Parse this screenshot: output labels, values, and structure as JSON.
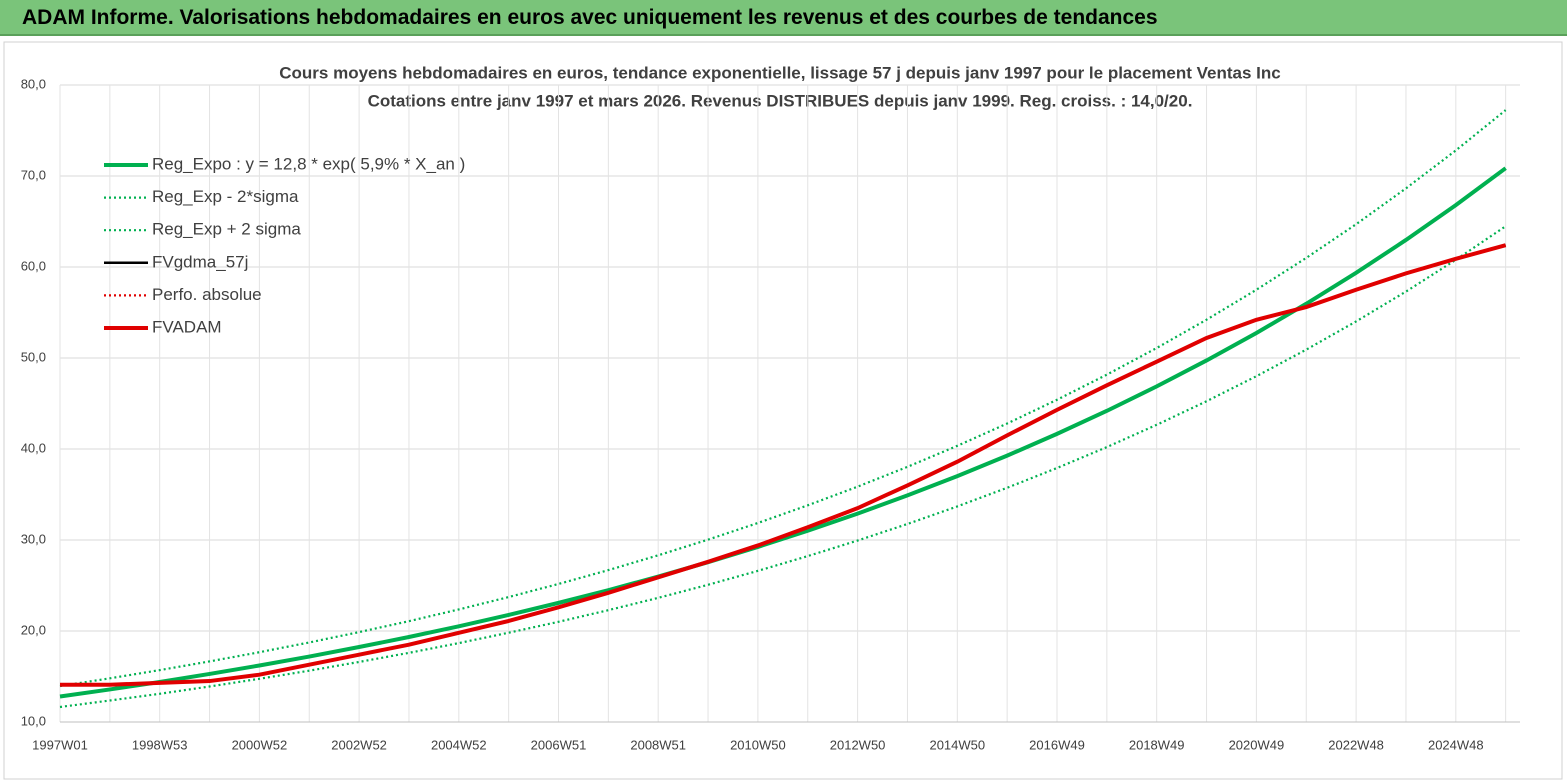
{
  "header": {
    "title": "ADAM Informe. Valorisations hebdomadaires en euros avec uniquement les revenus et des courbes de tendances"
  },
  "chart_data": {
    "type": "line",
    "title": "Cours moyens  hebdomadaires en euros, tendance exponentielle, lissage 57 j depuis janv 1997  pour le placement Ventas Inc",
    "subtitle": "Cotations entre janv 1997 et mars 2026. Revenus DISTRIBUES depuis janv 1999. Reg. croiss. : 14,0/20.",
    "categories": [
      "1997W01",
      null,
      "1998W53",
      null,
      "2000W52",
      null,
      "2002W52",
      null,
      "2004W52",
      null,
      "2006W51",
      null,
      "2008W51",
      null,
      "2010W50",
      null,
      "2012W50",
      null,
      "2014W50",
      null,
      "2016W49",
      null,
      "2018W49",
      null,
      "2020W49",
      null,
      "2022W48",
      null,
      "2024W48",
      null
    ],
    "ylim": [
      10,
      80
    ],
    "yticks": [
      {
        "value": 10,
        "label": "10,0"
      },
      {
        "value": 20,
        "label": "20,0"
      },
      {
        "value": 30,
        "label": "30,0"
      },
      {
        "value": 40,
        "label": "40,0"
      },
      {
        "value": 50,
        "label": "50,0"
      },
      {
        "value": 60,
        "label": "60,0"
      },
      {
        "value": 70,
        "label": "70,0"
      },
      {
        "value": 80,
        "label": "80,0"
      }
    ],
    "grid": true,
    "legend": "top-left",
    "series": [
      {
        "name": "Reg_Expo : y = 12,8 * exp( 5,9% *  X_an )",
        "color": "#00b050",
        "style": "thick",
        "values": [
          12.8,
          13.58,
          14.4,
          15.28,
          16.21,
          17.19,
          18.24,
          19.34,
          20.52,
          21.77,
          23.09,
          24.49,
          25.98,
          27.56,
          29.24,
          31.02,
          32.9,
          34.9,
          37.02,
          39.27,
          41.66,
          44.19,
          46.88,
          49.73,
          52.75,
          55.96,
          59.36,
          62.97,
          66.8,
          70.86
        ]
      },
      {
        "name": "Reg_Exp - 2*sigma",
        "color": "#00b050",
        "style": "dotted",
        "values": [
          11.65,
          12.36,
          13.1,
          13.9,
          14.75,
          15.64,
          16.6,
          17.6,
          18.67,
          19.81,
          21.01,
          22.29,
          23.64,
          25.08,
          26.61,
          28.23,
          29.94,
          31.76,
          33.69,
          35.74,
          37.91,
          40.21,
          42.66,
          45.25,
          48.0,
          50.92,
          54.02,
          57.3,
          60.79,
          64.48
        ]
      },
      {
        "name": "Reg_Exp + 2 sigma",
        "color": "#00b050",
        "style": "dotted",
        "values": [
          13.95,
          14.8,
          15.7,
          16.66,
          17.67,
          18.74,
          19.88,
          21.08,
          22.37,
          23.73,
          25.17,
          26.69,
          28.32,
          30.04,
          31.87,
          33.81,
          35.86,
          38.04,
          40.35,
          42.8,
          45.41,
          48.17,
          51.1,
          54.21,
          57.5,
          61.0,
          64.7,
          68.64,
          72.81,
          77.24
        ]
      },
      {
        "name": "FVgdma_57j",
        "color": "#000000",
        "style": "thin",
        "values": [
          14.1,
          14.1,
          14.3,
          14.5,
          15.2,
          16.3,
          17.4,
          18.5,
          19.8,
          21.1,
          22.6,
          24.2,
          25.9,
          27.6,
          29.4,
          31.4,
          33.5,
          36.0,
          38.6,
          41.5,
          44.3,
          47.0,
          49.6,
          52.2,
          54.2,
          55.6,
          57.5,
          59.3,
          60.9,
          62.4
        ]
      },
      {
        "name": "Perfo. absolue",
        "color": "#e00000",
        "style": "dotted",
        "values": [
          14.1,
          14.1,
          14.3,
          14.5,
          15.2,
          16.3,
          17.4,
          18.5,
          19.8,
          21.1,
          22.6,
          24.2,
          25.9,
          27.6,
          29.4,
          31.4,
          33.5,
          36.0,
          38.6,
          41.5,
          44.3,
          47.0,
          49.6,
          52.2,
          54.2,
          55.6,
          57.5,
          59.3,
          60.9,
          62.4
        ]
      },
      {
        "name": "FVADAM",
        "color": "#e00000",
        "style": "thick",
        "values": [
          14.1,
          14.1,
          14.3,
          14.5,
          15.2,
          16.3,
          17.4,
          18.5,
          19.8,
          21.1,
          22.6,
          24.2,
          25.9,
          27.6,
          29.4,
          31.4,
          33.5,
          36.0,
          38.6,
          41.5,
          44.3,
          47.0,
          49.6,
          52.2,
          54.2,
          55.6,
          57.5,
          59.3,
          60.9,
          62.4
        ]
      }
    ]
  }
}
